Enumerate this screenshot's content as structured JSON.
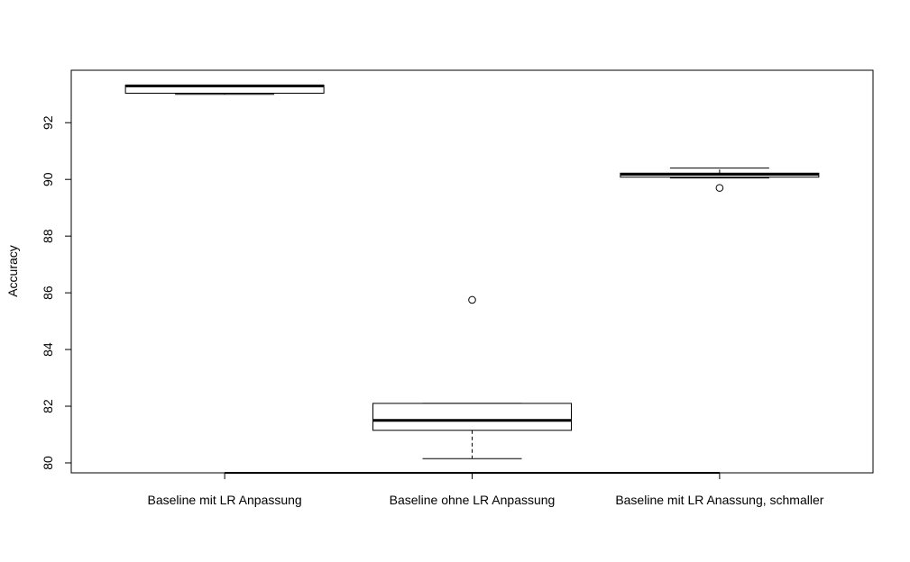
{
  "chart_data": {
    "type": "box",
    "title": "",
    "xlabel": "",
    "ylabel": "Accuracy",
    "ylim": [
      79.65,
      93.85
    ],
    "yticks": [
      80,
      82,
      84,
      86,
      88,
      90,
      92
    ],
    "grid": false,
    "legend": "none",
    "colors": {
      "line": "#000000",
      "fill": "#ffffff"
    },
    "categories": [
      "Baseline mit LR Anpassung",
      "Baseline ohne LR Anpassung",
      "Baseline mit LR Anassung, schmaller"
    ],
    "boxes": [
      {
        "lower_whisker": 93.0,
        "q1": 93.04,
        "median": 93.3,
        "q3": 93.32,
        "upper_whisker": 93.32,
        "outliers": []
      },
      {
        "lower_whisker": 80.15,
        "q1": 81.15,
        "median": 81.5,
        "q3": 82.1,
        "upper_whisker": 82.1,
        "outliers": [
          85.75
        ]
      },
      {
        "lower_whisker": 90.05,
        "q1": 90.08,
        "median": 90.18,
        "q3": 90.22,
        "upper_whisker": 90.4,
        "outliers": [
          89.7
        ]
      }
    ]
  }
}
